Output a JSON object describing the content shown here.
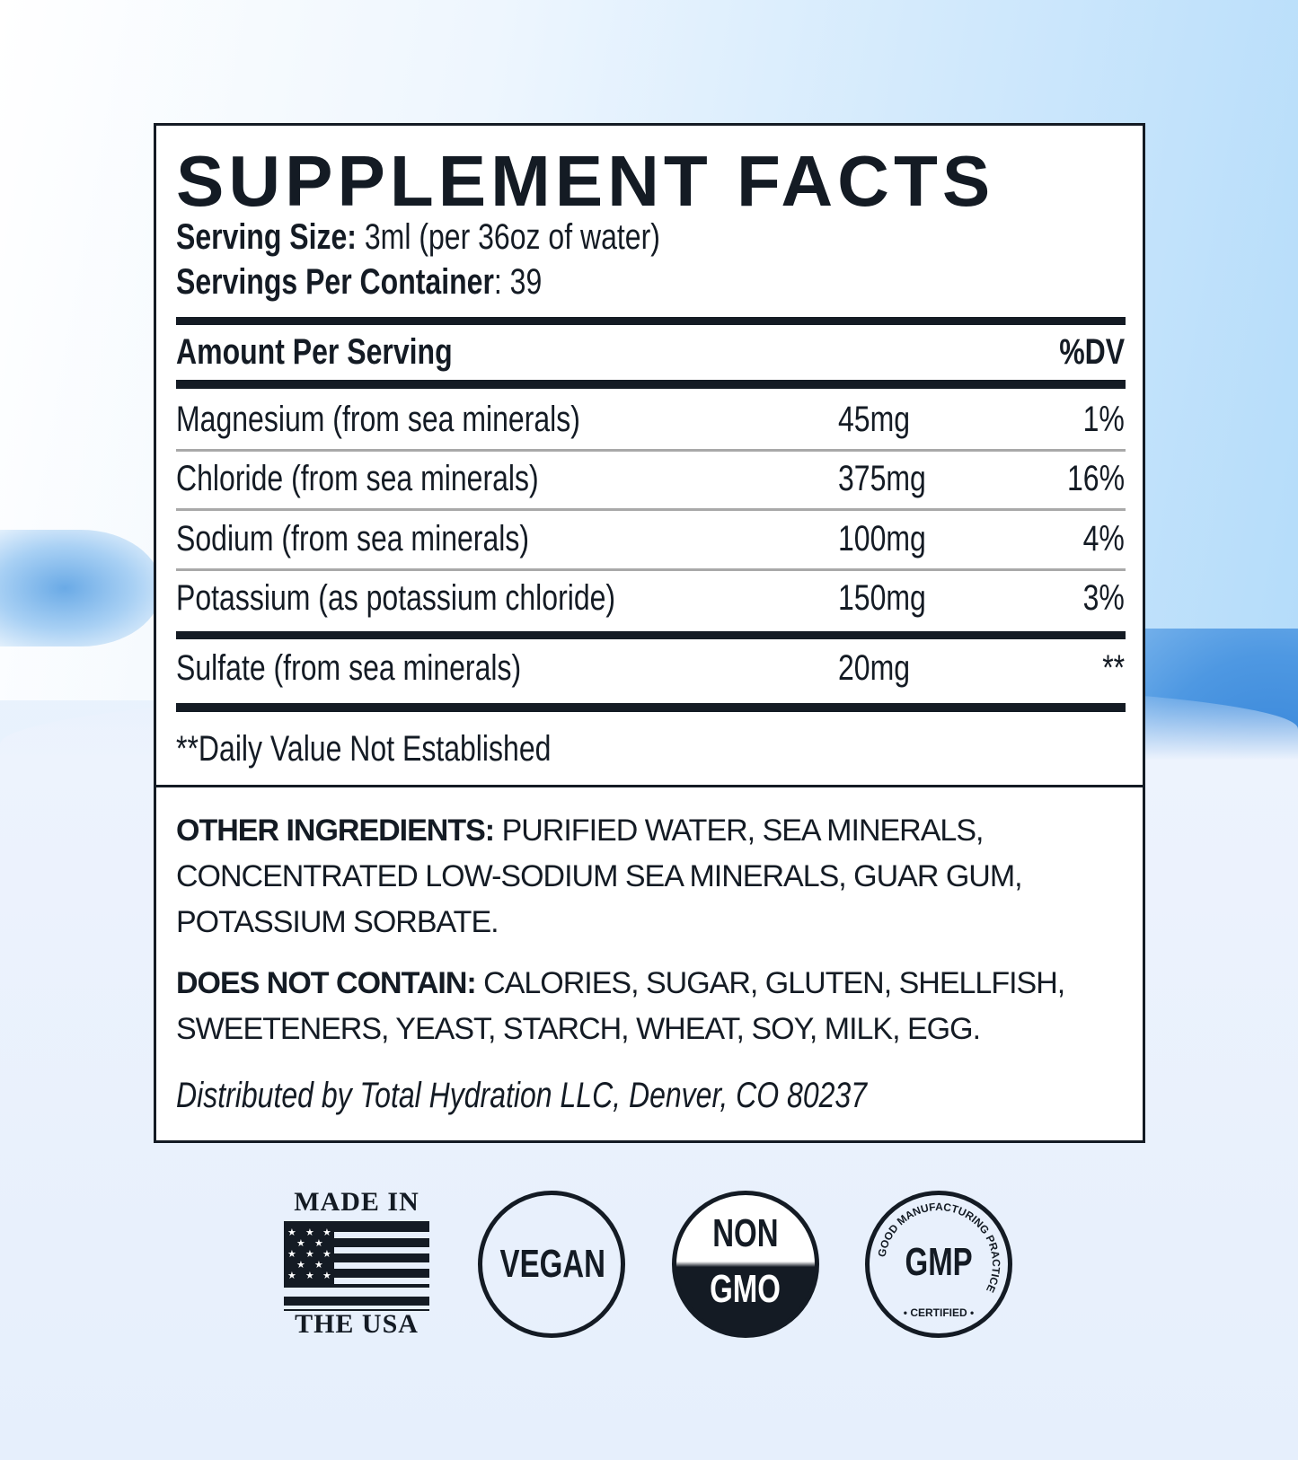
{
  "label": {
    "title": "SUPPLEMENT FACTS",
    "serving_size_label": "Serving Size:",
    "serving_size_value": "3ml (per 36oz of water)",
    "servings_label": "Servings Per Container",
    "servings_value": ": 39",
    "amount_header": "Amount Per Serving",
    "dv_header": "%DV",
    "rows": [
      {
        "name": "Magnesium (from sea minerals)",
        "amount": "45mg",
        "dv": "1%"
      },
      {
        "name": "Chloride (from sea minerals)",
        "amount": "375mg",
        "dv": "16%"
      },
      {
        "name": "Sodium (from sea minerals)",
        "amount": "100mg",
        "dv": "4%"
      },
      {
        "name": "Potassium (as potassium chloride)",
        "amount": "150mg",
        "dv": "3%"
      },
      {
        "name": "Sulfate (from sea minerals)",
        "amount": "20mg",
        "dv": "**"
      }
    ],
    "footnote": "**Daily Value Not Established",
    "other_label": "OTHER INGREDIENTS:",
    "other_text": " PURIFIED WATER, SEA MINERALS, CONCENTRATED LOW-SODIUM SEA MINERALS, GUAR GUM, POTASSIUM SORBATE.",
    "not_contain_label": "DOES NOT CONTAIN:",
    "not_contain_text": " CALORIES, SUGAR, GLUTEN, SHELLFISH, SWEETENERS, YEAST, STARCH, WHEAT, SOY, MILK, EGG.",
    "distributed": "Distributed by Total Hydration LLC, Denver, CO 80237"
  },
  "badges": {
    "usa_top": "MADE IN",
    "usa_bottom": "THE USA",
    "vegan": "VEGAN",
    "non": "NON",
    "gmo": "GMO",
    "gmp": "GMP",
    "gmp_ring": "GOOD MANUFACTURING PRACTICE",
    "gmp_certified": "• CERTIFIED •"
  },
  "colors": {
    "ink": "#141b24",
    "rule_gray": "#a9a9a9",
    "water_blue": "#4e98e2"
  }
}
